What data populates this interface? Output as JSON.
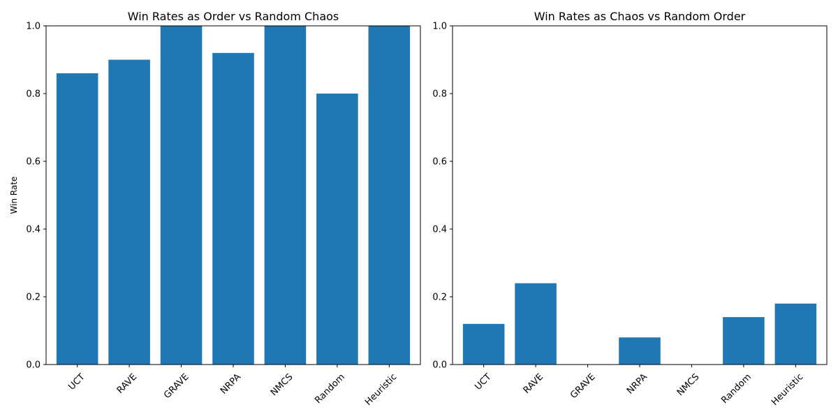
{
  "chart_data": [
    {
      "type": "bar",
      "title": "Win Rates as Order vs Random Chaos",
      "xlabel": "",
      "ylabel": "Win Rate",
      "categories": [
        "UCT",
        "RAVE",
        "GRAVE",
        "NRPA",
        "NMCS",
        "Random",
        "Heuristic"
      ],
      "values": [
        0.86,
        0.9,
        1.0,
        0.92,
        1.0,
        0.8,
        1.0
      ],
      "ylim": [
        0,
        1.0
      ],
      "yticks": [
        "0.0",
        "0.2",
        "0.4",
        "0.6",
        "0.8",
        "1.0"
      ],
      "bar_color": "#1f77b4",
      "grid": false
    },
    {
      "type": "bar",
      "title": "Win Rates as Chaos vs Random Order",
      "xlabel": "",
      "ylabel": "",
      "categories": [
        "UCT",
        "RAVE",
        "GRAVE",
        "NRPA",
        "NMCS",
        "Random",
        "Heuristic"
      ],
      "values": [
        0.12,
        0.24,
        0.0,
        0.08,
        0.0,
        0.14,
        0.18
      ],
      "ylim": [
        0,
        1.0
      ],
      "yticks": [
        "0.0",
        "0.2",
        "0.4",
        "0.6",
        "0.8",
        "1.0"
      ],
      "bar_color": "#1f77b4",
      "grid": false
    }
  ]
}
